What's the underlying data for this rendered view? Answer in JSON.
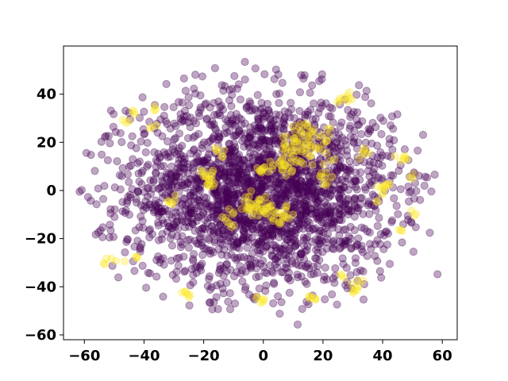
{
  "chart_data": {
    "type": "scatter",
    "title": "",
    "xlabel": "",
    "ylabel": "",
    "xlim": [
      -67,
      65
    ],
    "ylim": [
      -62,
      60
    ],
    "xticks": [
      -60,
      -40,
      -20,
      0,
      20,
      40,
      60
    ],
    "yticks": [
      -60,
      -40,
      -20,
      0,
      20,
      40
    ],
    "xtick_labels": [
      "−60",
      "−40",
      "−20",
      "0",
      "20",
      "40",
      "60"
    ],
    "ytick_labels": [
      "−60",
      "−40",
      "−20",
      "0",
      "20",
      "40"
    ],
    "grid": false,
    "legend": "none",
    "colormap": "viridis",
    "marker_alpha": 0.35,
    "series": [
      {
        "class": 0,
        "color": "#440154",
        "approx_point_count": 2500,
        "spread_center": [
          0,
          0
        ],
        "spread_x": 22,
        "spread_y": 20,
        "points": [
          [
            -61.6,
            -0.5
          ],
          [
            -60.9,
            0.2
          ],
          [
            -59.3,
            15.6
          ],
          [
            -57.8,
            14.8
          ],
          [
            -56.5,
            8.1
          ],
          [
            -55.9,
            -5.7
          ],
          [
            -54.2,
            14.9
          ],
          [
            -53.8,
            -15.3
          ],
          [
            -51.6,
            -19.5
          ],
          [
            -51.1,
            33.2
          ],
          [
            -50.2,
            31.7
          ],
          [
            -50.6,
            -31.3
          ],
          [
            -49.5,
            24.3
          ],
          [
            -48.6,
            -36.1
          ],
          [
            -47.5,
            20.1
          ],
          [
            -46.4,
            -25.7
          ],
          [
            -45.1,
            3.5
          ],
          [
            -44.7,
            29.5
          ],
          [
            -43.2,
            -33.4
          ],
          [
            -42.6,
            17.6
          ],
          [
            -41.1,
            -10.8
          ],
          [
            -40.5,
            38.7
          ],
          [
            -39.3,
            -40.4
          ],
          [
            -38.6,
            10.7
          ],
          [
            -37.2,
            -18.2
          ],
          [
            -36.5,
            25.8
          ],
          [
            -35.8,
            -28.9
          ],
          [
            -34.2,
            5.9
          ],
          [
            -33.6,
            -44.1
          ],
          [
            -32.5,
            44.2
          ],
          [
            -31.4,
            -3.7
          ],
          [
            -30.1,
            34.6
          ],
          [
            -29.2,
            -36.7
          ],
          [
            -28.5,
            16.3
          ],
          [
            -27.2,
            -22.4
          ],
          [
            -26.6,
            46.5
          ],
          [
            -25.3,
            7.2
          ],
          [
            -24.8,
            -47.8
          ],
          [
            -23.4,
            28.9
          ],
          [
            -22.3,
            -12.6
          ],
          [
            -21.1,
            39.5
          ],
          [
            -20.6,
            -30.4
          ],
          [
            -19.2,
            3.1
          ],
          [
            -18.4,
            20.2
          ],
          [
            -17.3,
            -40.2
          ],
          [
            -16.2,
            50.8
          ],
          [
            -15.1,
            -5.9
          ],
          [
            -14.5,
            31.2
          ],
          [
            -13.2,
            -24.6
          ],
          [
            -12.6,
            12.4
          ],
          [
            -11.1,
            -49.3
          ],
          [
            -10.4,
            42.3
          ],
          [
            -9.3,
            -15.7
          ],
          [
            -8.1,
            24.6
          ],
          [
            -7.5,
            -34.5
          ],
          [
            -6.2,
            53.4
          ],
          [
            -5.6,
            -1.4
          ],
          [
            -4.3,
            36.1
          ],
          [
            -3.4,
            -44.5
          ],
          [
            -2.1,
            17.2
          ],
          [
            -1.3,
            -21.3
          ],
          [
            0.4,
            48.3
          ],
          [
            1.2,
            -11.5
          ],
          [
            2.3,
            29.4
          ],
          [
            3.5,
            -38.3
          ],
          [
            4.6,
            8.6
          ],
          [
            5.5,
            -51.2
          ],
          [
            6.4,
            44.7
          ],
          [
            7.6,
            -26.8
          ],
          [
            8.5,
            2.2
          ],
          [
            9.4,
            33.7
          ],
          [
            10.6,
            -16.4
          ],
          [
            11.5,
            -55.7
          ],
          [
            12.3,
            40.8
          ],
          [
            13.6,
            -6.3
          ],
          [
            14.4,
            -31.5
          ],
          [
            15.5,
            22.6
          ],
          [
            16.5,
            -43.6
          ],
          [
            17.2,
            10.3
          ],
          [
            18.4,
            -20.8
          ],
          [
            19.6,
            46.2
          ],
          [
            20.3,
            -37.2
          ],
          [
            21.4,
            4.5
          ],
          [
            22.6,
            30.7
          ],
          [
            23.5,
            -13.6
          ],
          [
            24.7,
            -47.4
          ],
          [
            25.3,
            17.5
          ],
          [
            26.6,
            -28.2
          ],
          [
            27.4,
            37.8
          ],
          [
            28.3,
            -4.1
          ],
          [
            29.6,
            -40.7
          ],
          [
            30.5,
            24.8
          ],
          [
            31.4,
            -22.3
          ],
          [
            32.4,
            12.6
          ],
          [
            33.5,
            -33.6
          ],
          [
            34.6,
            41.4
          ],
          [
            35.5,
            -9.8
          ],
          [
            36.3,
            19.5
          ],
          [
            37.4,
            -27.2
          ],
          [
            38.6,
            5.3
          ],
          [
            39.3,
            30.2
          ],
          [
            40.5,
            -18.7
          ],
          [
            41.6,
            14.4
          ],
          [
            42.4,
            -30.5
          ],
          [
            43.5,
            25.6
          ],
          [
            44.7,
            -6.4
          ],
          [
            45.4,
            8.2
          ],
          [
            46.5,
            -21.6
          ],
          [
            47.4,
            17.1
          ],
          [
            48.6,
            1.6
          ],
          [
            49.7,
            -13.4
          ],
          [
            50.5,
            7.5
          ],
          [
            51.3,
            -0.2
          ],
          [
            52.2,
            6.1
          ],
          [
            58.4,
            -34.8
          ],
          [
            -56.2,
            -18.3
          ],
          [
            -53.1,
            22.2
          ],
          [
            -47.2,
            -4.8
          ],
          [
            -44.4,
            10.3
          ],
          [
            -41.3,
            -24.2
          ],
          [
            -38.2,
            28.5
          ],
          [
            -35.3,
            -8.6
          ],
          [
            -32.1,
            20.4
          ],
          [
            -29.6,
            -15.3
          ],
          [
            -26.3,
            33.1
          ],
          [
            -23.6,
            -28.5
          ],
          [
            -20.4,
            8.5
          ],
          [
            -17.6,
            -7.2
          ],
          [
            -14.4,
            -32.6
          ],
          [
            -11.3,
            19.5
          ],
          [
            -8.6,
            -28.1
          ],
          [
            -5.4,
            4.8
          ],
          [
            -2.3,
            -32.4
          ],
          [
            0.6,
            25.3
          ],
          [
            3.3,
            -22.6
          ],
          [
            6.5,
            12.7
          ],
          [
            9.3,
            -8.4
          ],
          [
            12.6,
            -26.3
          ],
          [
            15.4,
            3.4
          ],
          [
            18.5,
            -11.3
          ],
          [
            21.3,
            -24.1
          ],
          [
            24.4,
            7.5
          ],
          [
            27.6,
            -16.2
          ],
          [
            30.3,
            32.6
          ],
          [
            33.6,
            -45.3
          ],
          [
            36.4,
            3.7
          ],
          [
            39.5,
            -36.2
          ],
          [
            42.3,
            21.4
          ],
          [
            -28.6,
            2.2
          ],
          [
            -24.2,
            -4.3
          ],
          [
            -16.5,
            -17.4
          ],
          [
            -12.3,
            -2.8
          ],
          [
            -6.4,
            -18.2
          ],
          [
            -3.5,
            12.1
          ],
          [
            2.2,
            -2.1
          ],
          [
            5.6,
            -14.7
          ],
          [
            10.4,
            -19.3
          ],
          [
            13.5,
            -14.2
          ],
          [
            16.3,
            -21.4
          ],
          [
            19.4,
            -3.1
          ],
          [
            22.5,
            -9.6
          ],
          [
            25.6,
            0.4
          ]
        ]
      },
      {
        "class": 1,
        "color": "#fde725",
        "approx_point_count": 400,
        "note_clusters": "dense clusters near (12,20), (-3,-7), (-18,5)",
        "points": [
          [
            -19.4,
            6.6
          ],
          [
            -18.2,
            4.1
          ],
          [
            -17.1,
            7.4
          ],
          [
            -16.5,
            2.8
          ],
          [
            -20.3,
            8.2
          ],
          [
            -18.8,
            2.5
          ],
          [
            -12.6,
            -11.3
          ],
          [
            -11.4,
            -13.6
          ],
          [
            -10.2,
            -9.8
          ],
          [
            -6.3,
            -4.5
          ],
          [
            -5.2,
            -7.1
          ],
          [
            -4.1,
            -5.6
          ],
          [
            -3.3,
            -8.2
          ],
          [
            -2.4,
            -6.3
          ],
          [
            -1.3,
            -4.2
          ],
          [
            -0.6,
            -7.6
          ],
          [
            0.5,
            -9.3
          ],
          [
            1.4,
            -5.4
          ],
          [
            2.6,
            -8.1
          ],
          [
            -4.8,
            -2.6
          ],
          [
            -1.8,
            -10.4
          ],
          [
            3.5,
            -11.7
          ],
          [
            4.6,
            -9.4
          ],
          [
            5.3,
            -13.2
          ],
          [
            6.6,
            -10.5
          ],
          [
            7.4,
            -8.3
          ],
          [
            8.5,
            -11.6
          ],
          [
            6.2,
            8.6
          ],
          [
            7.1,
            10.3
          ],
          [
            8.4,
            9.5
          ],
          [
            5.3,
            11.2
          ],
          [
            -1.2,
            8.1
          ],
          [
            0.3,
            9.6
          ],
          [
            1.6,
            7.8
          ],
          [
            3.2,
            10.4
          ],
          [
            8.3,
            15.6
          ],
          [
            9.4,
            18.2
          ],
          [
            10.2,
            21.5
          ],
          [
            11.3,
            16.4
          ],
          [
            12.4,
            19.3
          ],
          [
            13.6,
            23.1
          ],
          [
            14.5,
            17.6
          ],
          [
            15.3,
            21.2
          ],
          [
            16.4,
            24.5
          ],
          [
            17.6,
            18.4
          ],
          [
            18.5,
            22.3
          ],
          [
            19.6,
            16.7
          ],
          [
            20.3,
            19.5
          ],
          [
            12.1,
            26.4
          ],
          [
            14.2,
            27.8
          ],
          [
            10.5,
            24.6
          ],
          [
            11.6,
            12.5
          ],
          [
            13.4,
            11.1
          ],
          [
            15.6,
            14.2
          ],
          [
            9.2,
            13.6
          ],
          [
            21.4,
            25.6
          ],
          [
            22.6,
            12.4
          ],
          [
            6.5,
            17.3
          ],
          [
            7.8,
            22.6
          ],
          [
            20.5,
            5.3
          ],
          [
            21.6,
            3.2
          ],
          [
            19.4,
            7.1
          ],
          [
            40.4,
            1.8
          ],
          [
            41.1,
            2.5
          ],
          [
            39.6,
            1.1
          ],
          [
            38.2,
            -4.6
          ],
          [
            50.6,
            -10.5
          ],
          [
            27.1,
            38.6
          ],
          [
            28.2,
            39.4
          ],
          [
            25.6,
            38.1
          ],
          [
            -31.8,
            -4.2
          ],
          [
            -30.4,
            -5.7
          ],
          [
            -24.6,
            -43.5
          ],
          [
            -26.3,
            -42.1
          ],
          [
            31.2,
            -40.5
          ],
          [
            30.1,
            -41.8
          ],
          [
            32.2,
            -39.4
          ],
          [
            -53.1,
            -30.6
          ],
          [
            -49.4,
            -29.3
          ],
          [
            -42.5,
            -27.6
          ],
          [
            -37.4,
            26.3
          ],
          [
            47.3,
            13.5
          ],
          [
            46.1,
            12.3
          ],
          [
            49.2,
            5.4
          ],
          [
            45.6,
            -16.3
          ],
          [
            -43.2,
            31.5
          ],
          [
            -47.1,
            29.3
          ],
          [
            -36.1,
            33.6
          ],
          [
            15.3,
            -44.2
          ],
          [
            17.6,
            -45.3
          ],
          [
            -2.3,
            -44.6
          ],
          [
            0.2,
            -45.2
          ],
          [
            26.3,
            -35.3
          ],
          [
            33.1,
            15.6
          ],
          [
            34.5,
            15.1
          ],
          [
            -15.4,
            16.2
          ],
          [
            -13.6,
            14.1
          ]
        ]
      }
    ]
  }
}
